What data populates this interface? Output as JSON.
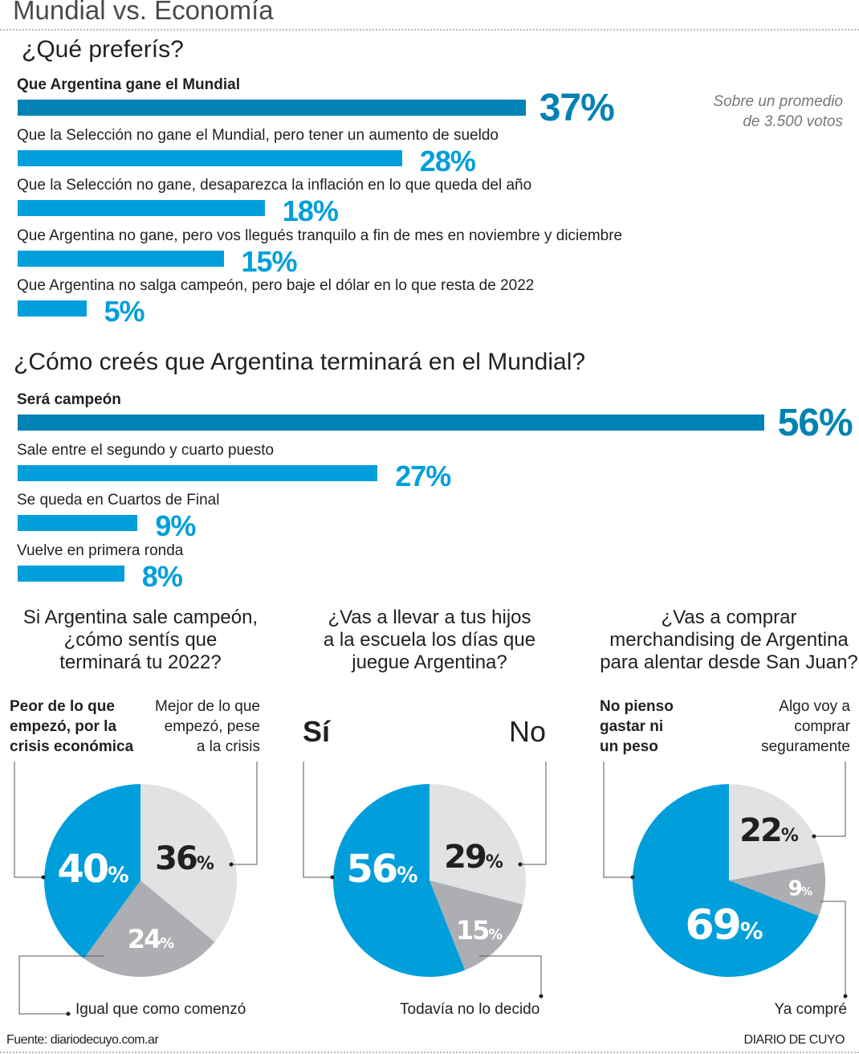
{
  "header": {
    "title": "Mundial vs. Economía"
  },
  "colors": {
    "dark_blue": "#0082b4",
    "blue": "#009fdb",
    "light_gray": "#e1e2e4",
    "gray": "#adaeb1"
  },
  "chart_data": [
    {
      "type": "bar",
      "orientation": "horizontal",
      "title": "¿Qué preferís?",
      "note": "Sobre un promedio de 3.500 votos",
      "note_lines": [
        "Sobre un promedio",
        "de 3.500 votos"
      ],
      "categories": [
        "Que Argentina gane el Mundial",
        "Que la Selección no gane el Mundial, pero tener un aumento de sueldo",
        "Que la Selección no gane, desaparezca la inflación en lo que queda del año",
        "Que Argentina no gane, pero vos llegués tranquilo a fin de mes en noviembre y diciembre",
        "Que Argentina no salga campeón, pero baje el dólar en lo que resta de 2022"
      ],
      "values": [
        37,
        28,
        18,
        15,
        5
      ],
      "labels": [
        "37%",
        "28%",
        "18%",
        "15%",
        "5%"
      ]
    },
    {
      "type": "bar",
      "orientation": "horizontal",
      "title": "¿Cómo creés que Argentina terminará en el Mundial?",
      "categories": [
        "Será campeón",
        "Sale entre el segundo y cuarto puesto",
        "Se queda en Cuartos de Final",
        "Vuelve en primera ronda"
      ],
      "values": [
        56,
        27,
        9,
        8
      ],
      "labels": [
        "56%",
        "27%",
        "9%",
        "8%"
      ]
    },
    {
      "type": "pie",
      "title_lines": [
        "Si Argentina sale campeón,",
        "¿cómo sentís que",
        "terminará tu 2022?"
      ],
      "slices": [
        {
          "label_lines": [
            "Mejor de lo que",
            "empezó, pese",
            "a la crisis"
          ],
          "value": 36,
          "num": "36",
          "color": "#e1e2e4"
        },
        {
          "label_lines": [
            "Igual que como comenzó"
          ],
          "value": 24,
          "num": "24",
          "color": "#adaeb1"
        },
        {
          "label_lines": [
            "Peor de lo que",
            "empezó, por la",
            "crisis económica"
          ],
          "value": 40,
          "num": "40",
          "color": "#009fdb"
        }
      ]
    },
    {
      "type": "pie",
      "title_lines": [
        "¿Vas a llevar a tus hijos",
        "a la escuela los días que",
        "juegue Argentina?"
      ],
      "slices": [
        {
          "label_lines": [
            "No"
          ],
          "value": 29,
          "num": "29",
          "color": "#e1e2e4"
        },
        {
          "label_lines": [
            "Todavía no lo decido"
          ],
          "value": 15,
          "num": "15",
          "color": "#adaeb1"
        },
        {
          "label_lines": [
            "Sí"
          ],
          "value": 56,
          "num": "56",
          "color": "#009fdb"
        }
      ]
    },
    {
      "type": "pie",
      "title_lines": [
        "¿Vas a comprar",
        "merchandising de Argentina",
        "para alentar desde San Juan?"
      ],
      "slices": [
        {
          "label_lines": [
            "Algo voy a",
            "comprar",
            "seguramente"
          ],
          "value": 22,
          "num": "22",
          "color": "#e1e2e4"
        },
        {
          "label_lines": [
            "Ya compré"
          ],
          "value": 9,
          "num": "9",
          "color": "#adaeb1"
        },
        {
          "label_lines": [
            "No pienso",
            "gastar ni",
            "un peso"
          ],
          "value": 69,
          "num": "69",
          "color": "#009fdb"
        }
      ]
    }
  ],
  "pct_sign": "%",
  "footer": {
    "source": "Fuente: diariodecuyo.com.ar",
    "brand": "DIARIO DE CUYO"
  }
}
